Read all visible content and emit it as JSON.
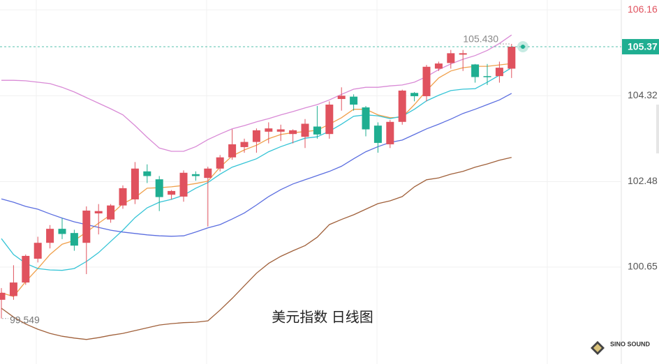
{
  "chart_data": {
    "type": "candlestick",
    "title": "美元指数 日线图",
    "brand": "SINO SOUND",
    "categories": [
      null,
      null,
      null,
      null,
      null,
      null,
      null,
      null,
      null,
      null,
      null,
      null,
      null,
      null,
      null,
      null,
      null,
      null,
      null,
      null,
      null,
      null,
      null,
      null,
      null,
      null,
      null,
      null,
      null,
      null,
      null,
      null,
      null,
      null,
      null,
      null,
      null,
      null,
      null,
      null,
      null,
      null,
      null
    ],
    "up_color": "#e0525e",
    "down_color": "#1fae91",
    "open": [
      99.95,
      100.03,
      100.32,
      100.83,
      101.17,
      101.47,
      101.38,
      101.17,
      101.8,
      101.67,
      101.97,
      102.1,
      102.7,
      102.53,
      102.2,
      102.16,
      102.64,
      102.56,
      102.76,
      103.0,
      103.22,
      103.33,
      103.55,
      103.55,
      103.5,
      103.44,
      103.66,
      103.5,
      104.25,
      104.3,
      104.07,
      103.68,
      103.28,
      103.76,
      104.38,
      104.31,
      104.9,
      105.02,
      105.2,
      104.99,
      104.74,
      104.74,
      104.9
    ],
    "high": [
      100.2,
      100.69,
      100.92,
      101.3,
      101.55,
      101.7,
      101.45,
      101.95,
      102.0,
      102.0,
      102.4,
      102.9,
      102.85,
      102.6,
      102.3,
      102.72,
      102.7,
      102.8,
      103.05,
      103.6,
      103.4,
      103.62,
      103.75,
      103.7,
      103.6,
      103.82,
      104.1,
      104.2,
      104.5,
      104.35,
      104.1,
      103.75,
      103.8,
      104.45,
      104.4,
      104.98,
      105.05,
      105.3,
      105.3,
      105.0,
      105.0,
      105.05,
      105.43
    ],
    "low": [
      99.55,
      99.95,
      100.27,
      100.75,
      101.05,
      101.25,
      101.0,
      100.5,
      101.35,
      101.6,
      101.9,
      102.0,
      102.45,
      101.85,
      102.1,
      102.05,
      102.5,
      101.52,
      102.7,
      102.95,
      103.1,
      103.1,
      103.3,
      103.35,
      103.3,
      103.2,
      103.4,
      103.4,
      104.0,
      104.0,
      103.45,
      103.1,
      103.2,
      103.7,
      104.2,
      104.2,
      104.85,
      104.9,
      104.85,
      104.6,
      104.55,
      104.6,
      104.7
    ],
    "close": [
      100.1,
      100.32,
      100.89,
      101.17,
      101.47,
      101.36,
      101.11,
      101.86,
      101.85,
      101.97,
      102.34,
      102.76,
      102.6,
      102.15,
      102.28,
      102.67,
      102.6,
      102.76,
      103.0,
      103.28,
      103.33,
      103.58,
      103.62,
      103.6,
      103.58,
      103.72,
      103.49,
      104.13,
      104.32,
      104.13,
      103.6,
      103.31,
      103.76,
      104.43,
      104.31,
      104.94,
      105.01,
      105.23,
      105.23,
      104.72,
      104.72,
      104.92,
      105.37
    ],
    "series": [
      {
        "color": "#d98ad6",
        "values": [
          104.65,
          104.65,
          104.64,
          104.61,
          104.58,
          104.5,
          104.4,
          104.28,
          104.16,
          104.04,
          103.91,
          103.68,
          103.43,
          103.2,
          103.13,
          103.13,
          103.23,
          103.38,
          103.5,
          103.61,
          103.68,
          103.76,
          103.83,
          103.91,
          103.98,
          104.06,
          104.13,
          104.23,
          104.35,
          104.46,
          104.5,
          104.5,
          104.53,
          104.55,
          104.61,
          104.73,
          104.88,
          105.0,
          105.1,
          105.18,
          105.29,
          105.44,
          105.62
        ]
      },
      {
        "color": "#f0a04b",
        "values": [
          100.1,
          100.02,
          100.34,
          100.62,
          100.92,
          101.14,
          101.22,
          101.4,
          101.59,
          101.77,
          102.01,
          102.14,
          102.34,
          102.35,
          102.37,
          102.4,
          102.44,
          102.49,
          102.79,
          103.03,
          103.16,
          103.26,
          103.4,
          103.49,
          103.53,
          103.55,
          103.58,
          103.71,
          103.85,
          104.03,
          104.03,
          103.91,
          103.85,
          103.86,
          104.13,
          104.43,
          104.7,
          104.85,
          104.92,
          104.95,
          104.95,
          104.98,
          105.01
        ]
      },
      {
        "color": "#35c4d6",
        "values": [
          101.26,
          100.92,
          100.73,
          100.62,
          100.59,
          100.58,
          100.62,
          100.77,
          100.96,
          101.2,
          101.44,
          101.71,
          101.92,
          102.04,
          102.1,
          102.19,
          102.34,
          102.46,
          102.64,
          102.79,
          102.88,
          102.97,
          103.12,
          103.23,
          103.32,
          103.41,
          103.44,
          103.56,
          103.71,
          103.88,
          103.91,
          103.89,
          103.83,
          103.88,
          104.03,
          104.21,
          104.33,
          104.43,
          104.46,
          104.47,
          104.61,
          104.76,
          104.92
        ]
      },
      {
        "color": "#5b6ee0",
        "values": [
          102.11,
          102.04,
          101.95,
          101.89,
          101.79,
          101.7,
          101.62,
          101.56,
          101.5,
          101.44,
          101.4,
          101.37,
          101.34,
          101.32,
          101.31,
          101.32,
          101.4,
          101.49,
          101.56,
          101.68,
          101.81,
          101.98,
          102.16,
          102.31,
          102.43,
          102.52,
          102.61,
          102.7,
          102.81,
          102.97,
          103.12,
          103.23,
          103.32,
          103.37,
          103.49,
          103.61,
          103.71,
          103.82,
          103.94,
          104.03,
          104.13,
          104.23,
          104.37
        ]
      },
      {
        "color": "#a0603a",
        "values": [
          99.77,
          99.58,
          99.43,
          99.32,
          99.23,
          99.17,
          99.13,
          99.1,
          99.14,
          99.19,
          99.23,
          99.29,
          99.35,
          99.41,
          99.44,
          99.46,
          99.47,
          99.5,
          99.73,
          99.98,
          100.25,
          100.52,
          100.73,
          100.88,
          101.0,
          101.11,
          101.29,
          101.56,
          101.67,
          101.77,
          101.89,
          102.01,
          102.07,
          102.16,
          102.37,
          102.52,
          102.56,
          102.64,
          102.7,
          102.79,
          102.86,
          102.94,
          103.0
        ]
      }
    ],
    "ylim": [
      98.575,
      106.37
    ],
    "yticks": [
      106.16,
      104.32,
      102.48,
      100.65
    ],
    "grid": true,
    "current_price": 105.37,
    "high_marker": {
      "value": 105.43,
      "label": "105.430"
    },
    "low_marker": 99.549
  }
}
